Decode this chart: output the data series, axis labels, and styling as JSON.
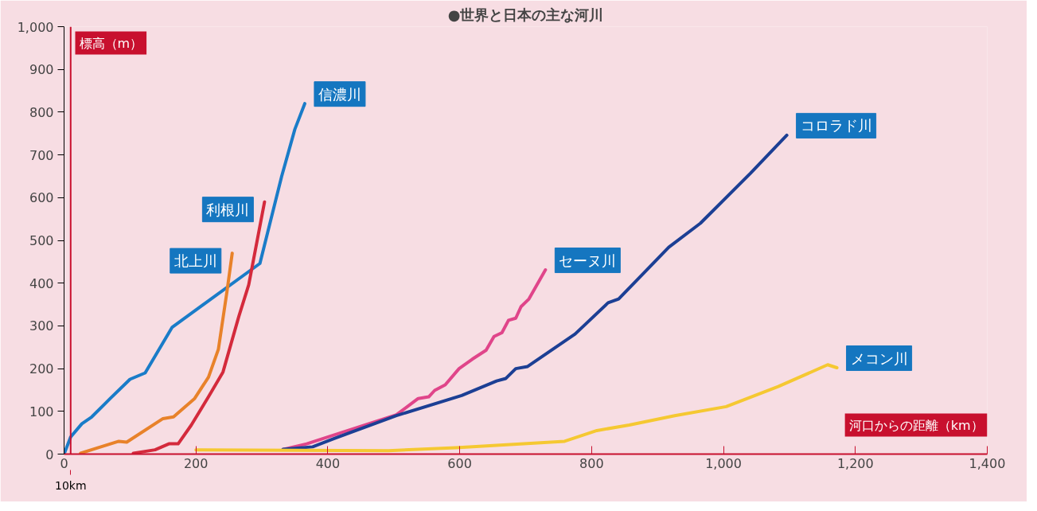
{
  "chart_data": {
    "type": "line",
    "title": "●世界と日本の主な河川",
    "xlabel": "河口からの距離（km）",
    "ylabel": "標高（m）",
    "xlim": [
      0,
      1400
    ],
    "ylim": [
      0,
      1000
    ],
    "xticks": [
      0,
      {
        "value": 200,
        "label": "200"
      },
      {
        "value": 400,
        "label": "400"
      },
      {
        "value": 600,
        "label": "600"
      },
      {
        "value": 800,
        "label": "800"
      },
      {
        "value": 1000,
        "label": "1,000"
      },
      {
        "value": 1200,
        "label": "1,200"
      },
      {
        "value": 1400,
        "label": "1,400"
      }
    ],
    "yticks": [
      0,
      100,
      200,
      300,
      400,
      500,
      600,
      700,
      800,
      900,
      {
        "value": 1000,
        "label": "1,000"
      }
    ],
    "grid": false,
    "line_style": "solid",
    "marker": "none",
    "ref_lines": [
      {
        "axis": "x",
        "value": 10,
        "label": "10km",
        "color": "#c8102e"
      }
    ],
    "series": [
      {
        "name": "信濃川",
        "color": "#1a7cc8",
        "x": [
          0,
          10,
          27,
          42,
          70,
          100,
          123,
          164,
          297,
          330,
          350,
          365
        ],
        "values": [
          0,
          40,
          71,
          87,
          130,
          175,
          190,
          297,
          446,
          650,
          760,
          820
        ]
      },
      {
        "name": "利根川",
        "color": "#d42a3c",
        "x": [
          105,
          138,
          159,
          173,
          193,
          219,
          241,
          265,
          280,
          304
        ],
        "values": [
          2,
          10,
          24,
          24,
          68,
          134,
          192,
          322,
          396,
          590
        ]
      },
      {
        "name": "北上川",
        "color": "#e8822a",
        "x": [
          25,
          52,
          83,
          95,
          150,
          166,
          198,
          219,
          234,
          247,
          255
        ],
        "values": [
          2,
          15,
          30,
          28,
          83,
          87,
          130,
          180,
          245,
          380,
          470
        ]
      },
      {
        "name": "セーヌ川",
        "color": "#e0458a",
        "x": [
          332,
          368,
          504,
          537,
          553,
          562,
          578,
          599,
          619,
          640,
          652,
          664,
          674,
          685,
          693,
          705,
          730
        ],
        "values": [
          11,
          24,
          92,
          130,
          134,
          149,
          162,
          200,
          222,
          243,
          275,
          284,
          313,
          318,
          345,
          363,
          431
        ]
      },
      {
        "name": "コロラド川",
        "color": "#1c3f94",
        "x": [
          332,
          377,
          409,
          504,
          603,
          656,
          670,
          685,
          703,
          775,
          825,
          841,
          917,
          965,
          1041,
          1096
        ],
        "values": [
          11,
          17,
          36,
          90,
          137,
          171,
          177,
          200,
          205,
          281,
          354,
          363,
          484,
          540,
          657,
          746
        ]
      },
      {
        "name": "メコン川",
        "color": "#f5c832",
        "x": [
          200,
          492,
          594,
          759,
          808,
          857,
          926,
          1004,
          1083,
          1158,
          1172
        ],
        "values": [
          10,
          8,
          15,
          30,
          55,
          68,
          90,
          111,
          158,
          209,
          202
        ]
      }
    ]
  }
}
